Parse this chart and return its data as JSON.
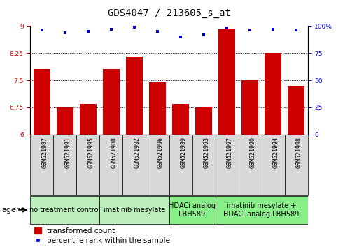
{
  "title": "GDS4047 / 213605_s_at",
  "samples": [
    "GSM521987",
    "GSM521991",
    "GSM521995",
    "GSM521988",
    "GSM521992",
    "GSM521996",
    "GSM521989",
    "GSM521993",
    "GSM521997",
    "GSM521990",
    "GSM521994",
    "GSM521998"
  ],
  "bar_values": [
    7.8,
    6.75,
    6.85,
    7.8,
    8.15,
    7.45,
    6.85,
    6.75,
    8.9,
    7.5,
    8.25,
    7.35
  ],
  "dot_values_pct": [
    96,
    94,
    95,
    97,
    99,
    95,
    90,
    92,
    98,
    96,
    97,
    96
  ],
  "bar_color": "#cc0000",
  "dot_color": "#0000cc",
  "ylim_left": [
    6,
    9
  ],
  "ylim_right": [
    0,
    100
  ],
  "yticks_left": [
    6,
    6.75,
    7.5,
    8.25,
    9
  ],
  "yticks_right": [
    0,
    25,
    50,
    75,
    100
  ],
  "ytick_labels_left": [
    "6",
    "6.75",
    "7.5",
    "8.25",
    "9"
  ],
  "ytick_labels_right": [
    "0",
    "25",
    "50",
    "75",
    "100%"
  ],
  "groups": [
    {
      "label": "no treatment control",
      "start": 0,
      "end": 3,
      "color": "#bbeebb"
    },
    {
      "label": "imatinib mesylate",
      "start": 3,
      "end": 6,
      "color": "#bbeebb"
    },
    {
      "label": "HDACi analog\nLBH589",
      "start": 6,
      "end": 8,
      "color": "#88ee88"
    },
    {
      "label": "imatinib mesylate +\nHDACi analog LBH589",
      "start": 8,
      "end": 12,
      "color": "#88ee88"
    }
  ],
  "agent_label": "agent",
  "legend_bar_label": "transformed count",
  "legend_dot_label": "percentile rank within the sample",
  "bar_width": 0.7,
  "title_fontsize": 10,
  "tick_fontsize": 6.5,
  "sample_fontsize": 6,
  "group_fontsize": 7,
  "legend_fontsize": 7.5,
  "agent_fontsize": 8,
  "grid_yticks": [
    6.75,
    7.5,
    8.25
  ]
}
